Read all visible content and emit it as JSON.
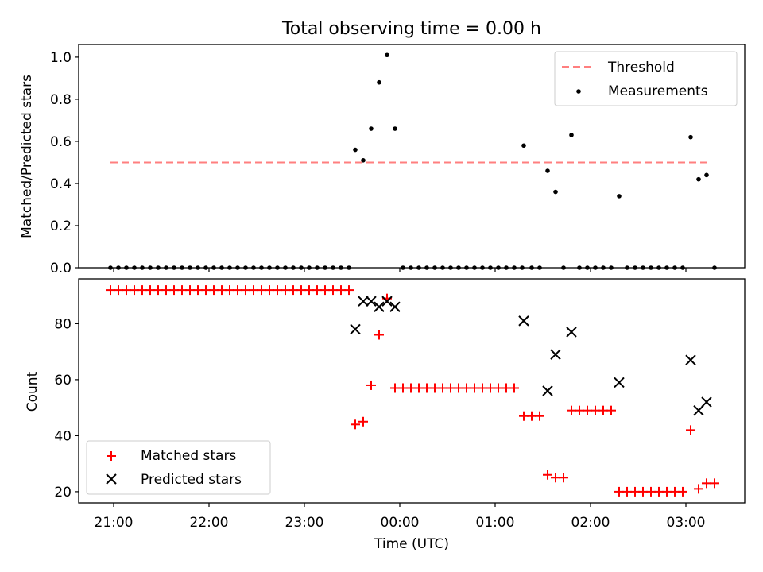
{
  "figure": {
    "title": "Total observing time = 0.00 h",
    "xlabel": "Time (UTC)",
    "x_tick_labels": [
      "21:00",
      "22:00",
      "23:00",
      "00:00",
      "01:00",
      "02:00",
      "03:00"
    ]
  },
  "chart_data": [
    {
      "type": "scatter",
      "panel": "top",
      "ylabel": "Matched/Predicted stars",
      "xlim": [
        "20:38",
        "03:37"
      ],
      "ylim": [
        0,
        1.06
      ],
      "y_ticks": [
        "0.0",
        "0.2",
        "0.4",
        "0.6",
        "0.8",
        "1.0"
      ],
      "legend_placement": "upper right",
      "threshold": {
        "name": "Threshold",
        "value": 0.5,
        "x_range": [
          "20:58",
          "03:16"
        ],
        "color": "#ff7f7f",
        "style": "dashed"
      },
      "series": [
        {
          "name": "Measurements",
          "color": "#000000",
          "marker": "dot",
          "points": [
            [
              "20:58",
              0
            ],
            [
              "21:03",
              0
            ],
            [
              "21:08",
              0
            ],
            [
              "21:13",
              0
            ],
            [
              "21:18",
              0
            ],
            [
              "21:23",
              0
            ],
            [
              "21:28",
              0
            ],
            [
              "21:33",
              0
            ],
            [
              "21:38",
              0
            ],
            [
              "21:43",
              0
            ],
            [
              "21:48",
              0
            ],
            [
              "21:53",
              0
            ],
            [
              "21:58",
              0
            ],
            [
              "22:03",
              0
            ],
            [
              "22:08",
              0
            ],
            [
              "22:13",
              0
            ],
            [
              "22:18",
              0
            ],
            [
              "22:23",
              0
            ],
            [
              "22:28",
              0
            ],
            [
              "22:33",
              0
            ],
            [
              "22:38",
              0
            ],
            [
              "22:43",
              0
            ],
            [
              "22:48",
              0
            ],
            [
              "22:53",
              0
            ],
            [
              "22:58",
              0
            ],
            [
              "23:03",
              0
            ],
            [
              "23:08",
              0
            ],
            [
              "23:13",
              0
            ],
            [
              "23:18",
              0
            ],
            [
              "23:23",
              0
            ],
            [
              "23:28",
              0
            ],
            [
              "23:32",
              0.56
            ],
            [
              "23:37",
              0.51
            ],
            [
              "23:42",
              0.66
            ],
            [
              "23:47",
              0.88
            ],
            [
              "23:52",
              1.01
            ],
            [
              "23:57",
              0.66
            ],
            [
              "00:02",
              0
            ],
            [
              "00:07",
              0
            ],
            [
              "00:12",
              0
            ],
            [
              "00:17",
              0
            ],
            [
              "00:22",
              0
            ],
            [
              "00:27",
              0
            ],
            [
              "00:32",
              0
            ],
            [
              "00:37",
              0
            ],
            [
              "00:42",
              0
            ],
            [
              "00:47",
              0
            ],
            [
              "00:52",
              0
            ],
            [
              "00:57",
              0
            ],
            [
              "01:02",
              0
            ],
            [
              "01:07",
              0
            ],
            [
              "01:12",
              0
            ],
            [
              "01:17",
              0
            ],
            [
              "01:18",
              0.58
            ],
            [
              "01:23",
              0
            ],
            [
              "01:28",
              0
            ],
            [
              "01:33",
              0.46
            ],
            [
              "01:38",
              0.36
            ],
            [
              "01:43",
              0
            ],
            [
              "01:48",
              0.63
            ],
            [
              "01:53",
              0
            ],
            [
              "01:58",
              0
            ],
            [
              "02:03",
              0
            ],
            [
              "02:08",
              0
            ],
            [
              "02:13",
              0
            ],
            [
              "02:18",
              0.34
            ],
            [
              "02:23",
              0
            ],
            [
              "02:28",
              0
            ],
            [
              "02:33",
              0
            ],
            [
              "02:38",
              0
            ],
            [
              "02:43",
              0
            ],
            [
              "02:48",
              0
            ],
            [
              "02:53",
              0
            ],
            [
              "02:58",
              0
            ],
            [
              "03:03",
              0.62
            ],
            [
              "03:08",
              0.42
            ],
            [
              "03:13",
              0.44
            ],
            [
              "03:18",
              0
            ]
          ]
        }
      ]
    },
    {
      "type": "scatter",
      "panel": "bottom",
      "ylabel": "Count",
      "xlim": [
        "20:38",
        "03:37"
      ],
      "ylim": [
        16,
        96
      ],
      "y_ticks": [
        "20",
        "40",
        "60",
        "80"
      ],
      "legend_placement": "lower left",
      "series": [
        {
          "name": "Matched stars",
          "color": "#ff0000",
          "marker": "plus",
          "points": [
            [
              "20:58",
              92
            ],
            [
              "21:03",
              92
            ],
            [
              "21:08",
              92
            ],
            [
              "21:13",
              92
            ],
            [
              "21:18",
              92
            ],
            [
              "21:23",
              92
            ],
            [
              "21:28",
              92
            ],
            [
              "21:33",
              92
            ],
            [
              "21:38",
              92
            ],
            [
              "21:43",
              92
            ],
            [
              "21:48",
              92
            ],
            [
              "21:53",
              92
            ],
            [
              "21:58",
              92
            ],
            [
              "22:03",
              92
            ],
            [
              "22:08",
              92
            ],
            [
              "22:13",
              92
            ],
            [
              "22:18",
              92
            ],
            [
              "22:23",
              92
            ],
            [
              "22:28",
              92
            ],
            [
              "22:33",
              92
            ],
            [
              "22:38",
              92
            ],
            [
              "22:43",
              92
            ],
            [
              "22:48",
              92
            ],
            [
              "22:53",
              92
            ],
            [
              "22:58",
              92
            ],
            [
              "23:03",
              92
            ],
            [
              "23:08",
              92
            ],
            [
              "23:13",
              92
            ],
            [
              "23:18",
              92
            ],
            [
              "23:23",
              92
            ],
            [
              "23:28",
              92
            ],
            [
              "23:32",
              44
            ],
            [
              "23:37",
              45
            ],
            [
              "23:42",
              58
            ],
            [
              "23:47",
              76
            ],
            [
              "23:52",
              89
            ],
            [
              "23:57",
              57
            ],
            [
              "00:02",
              57
            ],
            [
              "00:07",
              57
            ],
            [
              "00:12",
              57
            ],
            [
              "00:17",
              57
            ],
            [
              "00:22",
              57
            ],
            [
              "00:27",
              57
            ],
            [
              "00:32",
              57
            ],
            [
              "00:37",
              57
            ],
            [
              "00:42",
              57
            ],
            [
              "00:47",
              57
            ],
            [
              "00:52",
              57
            ],
            [
              "00:57",
              57
            ],
            [
              "01:02",
              57
            ],
            [
              "01:07",
              57
            ],
            [
              "01:12",
              57
            ],
            [
              "01:18",
              47
            ],
            [
              "01:23",
              47
            ],
            [
              "01:28",
              47
            ],
            [
              "01:33",
              26
            ],
            [
              "01:38",
              25
            ],
            [
              "01:43",
              25
            ],
            [
              "01:48",
              49
            ],
            [
              "01:53",
              49
            ],
            [
              "01:58",
              49
            ],
            [
              "02:03",
              49
            ],
            [
              "02:08",
              49
            ],
            [
              "02:13",
              49
            ],
            [
              "02:18",
              20
            ],
            [
              "02:23",
              20
            ],
            [
              "02:28",
              20
            ],
            [
              "02:33",
              20
            ],
            [
              "02:38",
              20
            ],
            [
              "02:43",
              20
            ],
            [
              "02:48",
              20
            ],
            [
              "02:53",
              20
            ],
            [
              "02:58",
              20
            ],
            [
              "03:03",
              42
            ],
            [
              "03:08",
              21
            ],
            [
              "03:13",
              23
            ],
            [
              "03:18",
              23
            ]
          ]
        },
        {
          "name": "Predicted stars",
          "color": "#000000",
          "marker": "x",
          "points": [
            [
              "23:32",
              78
            ],
            [
              "23:37",
              88
            ],
            [
              "23:42",
              88
            ],
            [
              "23:47",
              86
            ],
            [
              "23:52",
              88
            ],
            [
              "23:57",
              86
            ],
            [
              "01:18",
              81
            ],
            [
              "01:33",
              56
            ],
            [
              "01:38",
              69
            ],
            [
              "01:48",
              77
            ],
            [
              "02:18",
              59
            ],
            [
              "03:03",
              67
            ],
            [
              "03:08",
              49
            ],
            [
              "03:13",
              52
            ]
          ]
        }
      ]
    }
  ]
}
